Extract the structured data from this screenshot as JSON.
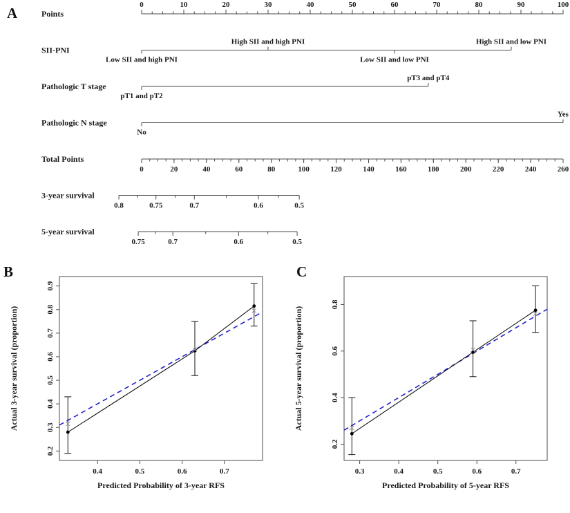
{
  "figure": {
    "panel_a_label": "A",
    "panel_b_label": "B",
    "panel_c_label": "C"
  },
  "colors": {
    "ideal_line": "#2222cc",
    "solid_line": "#111111",
    "cross_marker": "#999999",
    "axis_line": "#4a4a4a",
    "text": "#1a1a1a"
  },
  "chart_data": [
    {
      "type": "nomogram",
      "panel": "A",
      "rows": [
        {
          "name": "points",
          "label": "Points",
          "kind": "axis",
          "start": 0,
          "end": 1,
          "tick_side": "up",
          "minor_step": 0.025,
          "ticks": [
            {
              "pos": 0.0,
              "label": "0"
            },
            {
              "pos": 0.1,
              "label": "10"
            },
            {
              "pos": 0.2,
              "label": "20"
            },
            {
              "pos": 0.3,
              "label": "30"
            },
            {
              "pos": 0.4,
              "label": "40"
            },
            {
              "pos": 0.5,
              "label": "50"
            },
            {
              "pos": 0.6,
              "label": "60"
            },
            {
              "pos": 0.7,
              "label": "70"
            },
            {
              "pos": 0.8,
              "label": "80"
            },
            {
              "pos": 0.9,
              "label": "90"
            },
            {
              "pos": 1.0,
              "label": "100"
            }
          ]
        },
        {
          "name": "sii-pni",
          "label": "SII-PNI",
          "kind": "categorical",
          "start": 0,
          "end": 0.877,
          "items": [
            {
              "pos": 0.0,
              "label": "Low SII and high PNI",
              "side": "below"
            },
            {
              "pos": 0.3,
              "label": "High SII and high PNI",
              "side": "above"
            },
            {
              "pos": 0.6,
              "label": "Low SII and low PNI",
              "side": "below"
            },
            {
              "pos": 0.877,
              "label": "High SII and low PNI",
              "side": "above"
            }
          ]
        },
        {
          "name": "pathologic-t-stage",
          "label": "Pathologic T stage",
          "kind": "categorical",
          "start": 0,
          "end": 0.68,
          "items": [
            {
              "pos": 0.0,
              "label": "pT1 and pT2",
              "side": "below"
            },
            {
              "pos": 0.68,
              "label": "pT3 and pT4",
              "side": "above"
            }
          ]
        },
        {
          "name": "pathologic-n-stage",
          "label": "Pathologic N stage",
          "kind": "categorical",
          "start": 0,
          "end": 1,
          "items": [
            {
              "pos": 0.0,
              "label": "No",
              "side": "below"
            },
            {
              "pos": 1.0,
              "label": "Yes",
              "side": "above"
            }
          ]
        },
        {
          "name": "total-points",
          "label": "Total Points",
          "kind": "axis",
          "start": 0,
          "end": 1,
          "tick_side": "down",
          "minor_step": 0.019231,
          "ticks": [
            {
              "pos": 0.0,
              "label": "0"
            },
            {
              "pos": 0.0769,
              "label": "20"
            },
            {
              "pos": 0.1538,
              "label": "40"
            },
            {
              "pos": 0.2308,
              "label": "60"
            },
            {
              "pos": 0.3077,
              "label": "80"
            },
            {
              "pos": 0.3846,
              "label": "100"
            },
            {
              "pos": 0.4615,
              "label": "120"
            },
            {
              "pos": 0.5385,
              "label": "140"
            },
            {
              "pos": 0.6154,
              "label": "160"
            },
            {
              "pos": 0.6923,
              "label": "180"
            },
            {
              "pos": 0.7692,
              "label": "200"
            },
            {
              "pos": 0.8462,
              "label": "220"
            },
            {
              "pos": 0.9231,
              "label": "240"
            },
            {
              "pos": 1.0,
              "label": "260"
            }
          ]
        },
        {
          "name": "survival-3yr",
          "label": "3-year survival",
          "kind": "axis",
          "start": -0.054,
          "end": 0.374,
          "tick_side": "down",
          "minor_positions": [
            -0.01,
            0.0795,
            0.201,
            0.3245
          ],
          "ticks": [
            {
              "pos": -0.054,
              "label": "0.8"
            },
            {
              "pos": 0.034,
              "label": "0.75"
            },
            {
              "pos": 0.125,
              "label": "0.7"
            },
            {
              "pos": 0.277,
              "label": "0.6"
            },
            {
              "pos": 0.374,
              "label": "0.5"
            }
          ]
        },
        {
          "name": "survival-5yr",
          "label": "5-year survival",
          "kind": "axis",
          "start": -0.008,
          "end": 0.369,
          "tick_side": "down",
          "minor_positions": [
            0.033,
            0.152,
            0.2995
          ],
          "ticks": [
            {
              "pos": -0.008,
              "label": "0.75"
            },
            {
              "pos": 0.074,
              "label": "0.7"
            },
            {
              "pos": 0.23,
              "label": "0.6"
            },
            {
              "pos": 0.369,
              "label": "0.5"
            }
          ]
        }
      ]
    },
    {
      "type": "scatter",
      "panel": "B",
      "xlabel": "Predicted Probability of 3-year RFS",
      "ylabel": "Actual 3-year survival (proportion)",
      "xlim": [
        0.31,
        0.79
      ],
      "ylim": [
        0.16,
        0.94
      ],
      "xticks": [
        {
          "v": 0.4,
          "label": "0.4"
        },
        {
          "v": 0.5,
          "label": "0.5"
        },
        {
          "v": 0.6,
          "label": "0.6"
        },
        {
          "v": 0.7,
          "label": "0.7"
        }
      ],
      "yticks": [
        {
          "v": 0.2,
          "label": "0.2"
        },
        {
          "v": 0.3,
          "label": "0.3"
        },
        {
          "v": 0.4,
          "label": "0.4"
        },
        {
          "v": 0.5,
          "label": "0.5"
        },
        {
          "v": 0.6,
          "label": "0.6"
        },
        {
          "v": 0.7,
          "label": "0.7"
        },
        {
          "v": 0.8,
          "label": "0.8"
        },
        {
          "v": 0.9,
          "label": "0.9"
        }
      ],
      "ideal_line": {
        "style": "dashed",
        "from": 0.31,
        "to": 0.79
      },
      "points": [
        {
          "x": 0.33,
          "y": 0.28,
          "ci_low": 0.19,
          "ci_high": 0.43
        },
        {
          "x": 0.63,
          "y": 0.625,
          "ci_low": 0.52,
          "ci_high": 0.75
        },
        {
          "x": 0.77,
          "y": 0.815,
          "ci_low": 0.73,
          "ci_high": 0.91
        }
      ],
      "bias_corrected": [
        {
          "x": 0.33,
          "y": 0.315
        },
        {
          "x": 0.63,
          "y": 0.63
        },
        {
          "x": 0.77,
          "y": 0.795
        }
      ]
    },
    {
      "type": "scatter",
      "panel": "C",
      "xlabel": "Predicted Probability of 5-year RFS",
      "ylabel": "Actual 5-year survival (proportion)",
      "xlim": [
        0.26,
        0.78
      ],
      "ylim": [
        0.13,
        0.92
      ],
      "xticks": [
        {
          "v": 0.3,
          "label": "0.3"
        },
        {
          "v": 0.4,
          "label": "0.4"
        },
        {
          "v": 0.5,
          "label": "0.5"
        },
        {
          "v": 0.6,
          "label": "0.6"
        },
        {
          "v": 0.7,
          "label": "0.7"
        }
      ],
      "yticks": [
        {
          "v": 0.2,
          "label": "0.2"
        },
        {
          "v": 0.4,
          "label": "0.4"
        },
        {
          "v": 0.6,
          "label": "0.6"
        },
        {
          "v": 0.8,
          "label": "0.8"
        }
      ],
      "ideal_line": {
        "style": "dashed",
        "from": 0.26,
        "to": 0.78
      },
      "points": [
        {
          "x": 0.28,
          "y": 0.245,
          "ci_low": 0.155,
          "ci_high": 0.4
        },
        {
          "x": 0.59,
          "y": 0.595,
          "ci_low": 0.49,
          "ci_high": 0.73
        },
        {
          "x": 0.75,
          "y": 0.775,
          "ci_low": 0.68,
          "ci_high": 0.88
        }
      ],
      "bias_corrected": [
        {
          "x": 0.28,
          "y": 0.27
        },
        {
          "x": 0.59,
          "y": 0.605
        },
        {
          "x": 0.75,
          "y": 0.76
        }
      ]
    }
  ]
}
